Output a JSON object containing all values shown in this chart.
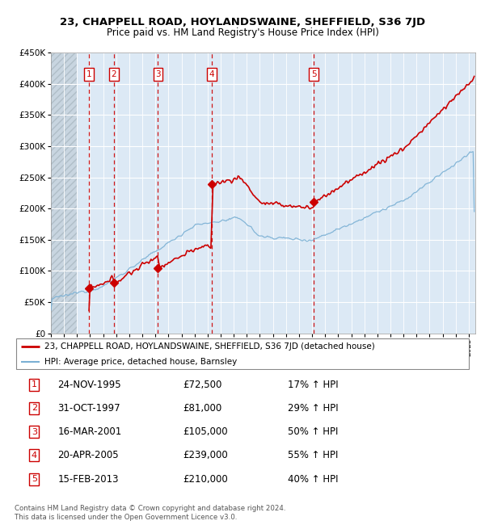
{
  "title": "23, CHAPPELL ROAD, HOYLANDSWAINE, SHEFFIELD, S36 7JD",
  "subtitle": "Price paid vs. HM Land Registry's House Price Index (HPI)",
  "ylim": [
    0,
    450000
  ],
  "yticks": [
    0,
    50000,
    100000,
    150000,
    200000,
    250000,
    300000,
    350000,
    400000,
    450000
  ],
  "xlim_start": 1993.0,
  "xlim_end": 2025.5,
  "hatch_end_year": 1995.0,
  "sale_points": [
    {
      "year": 1995.9,
      "price": 72500,
      "label": "1"
    },
    {
      "year": 1997.83,
      "price": 81000,
      "label": "2"
    },
    {
      "year": 2001.2,
      "price": 105000,
      "label": "3"
    },
    {
      "year": 2005.3,
      "price": 239000,
      "label": "4"
    },
    {
      "year": 2013.12,
      "price": 210000,
      "label": "5"
    }
  ],
  "legend_entries": [
    {
      "label": "23, CHAPPELL ROAD, HOYLANDSWAINE, SHEFFIELD, S36 7JD (detached house)",
      "color": "#cc0000",
      "lw": 2
    },
    {
      "label": "HPI: Average price, detached house, Barnsley",
      "color": "#7ab0d4",
      "lw": 1.5
    }
  ],
  "table_rows": [
    {
      "num": "1",
      "date": "24-NOV-1995",
      "price": "£72,500",
      "change": "17% ↑ HPI"
    },
    {
      "num": "2",
      "date": "31-OCT-1997",
      "price": "£81,000",
      "change": "29% ↑ HPI"
    },
    {
      "num": "3",
      "date": "16-MAR-2001",
      "price": "£105,000",
      "change": "50% ↑ HPI"
    },
    {
      "num": "4",
      "date": "20-APR-2005",
      "price": "£239,000",
      "change": "55% ↑ HPI"
    },
    {
      "num": "5",
      "date": "15-FEB-2013",
      "price": "£210,000",
      "change": "40% ↑ HPI"
    }
  ],
  "footnote": "Contains HM Land Registry data © Crown copyright and database right 2024.\nThis data is licensed under the Open Government Licence v3.0.",
  "line_color_red": "#cc0000",
  "line_color_blue": "#7ab0d4",
  "plot_bg": "#dce9f5"
}
